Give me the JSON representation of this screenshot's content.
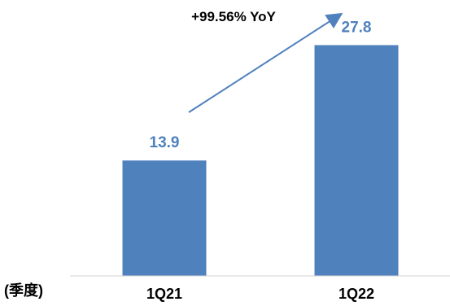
{
  "chart_data": {
    "type": "bar",
    "categories": [
      "1Q21",
      "1Q22"
    ],
    "values": [
      13.9,
      27.8
    ],
    "data_labels": [
      "13.9",
      "27.8"
    ],
    "series": [
      {
        "values": [
          13.9,
          27.8
        ]
      }
    ],
    "title": "",
    "xlabel": "(季度)",
    "ylabel": "",
    "ylim": [
      0,
      30
    ],
    "annotation": "+99.56% YoY",
    "grid": false,
    "legend": "none",
    "colors": {
      "bar": "#4f81bd",
      "data_label": "#4f81bd",
      "arrow": "#4f81bd",
      "axis": "#d0d0d0",
      "text": "#000000"
    }
  }
}
